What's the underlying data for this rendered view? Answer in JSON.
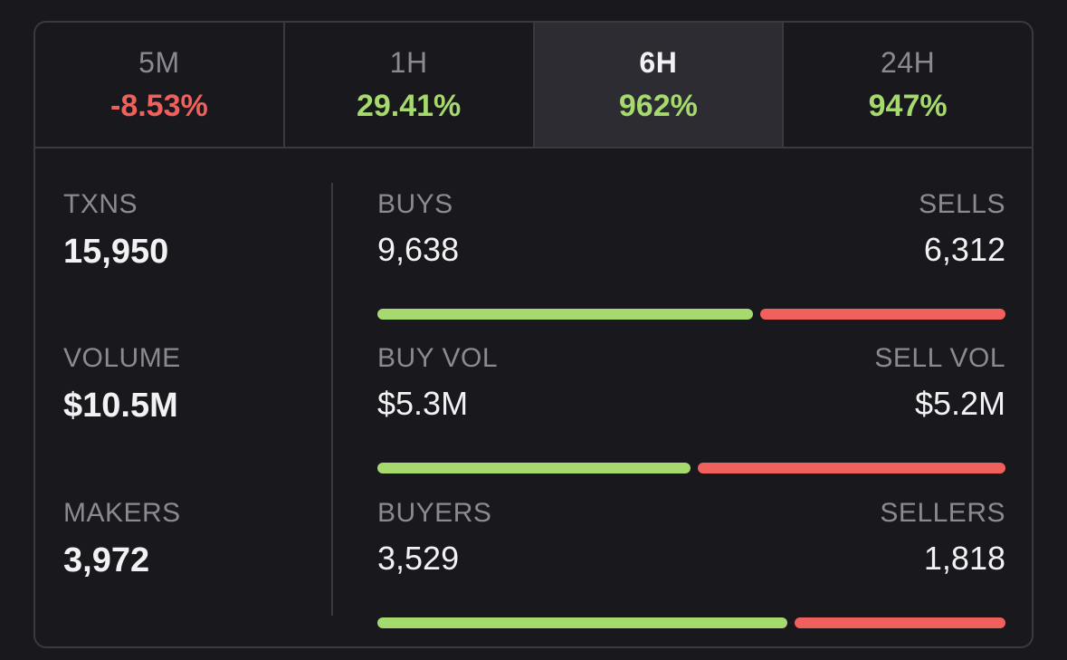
{
  "tabs": [
    {
      "label": "5M",
      "value": "-8.53%",
      "trend": "negative",
      "active": false
    },
    {
      "label": "1H",
      "value": "29.41%",
      "trend": "positive",
      "active": false
    },
    {
      "label": "6H",
      "value": "962%",
      "trend": "positive",
      "active": true
    },
    {
      "label": "24H",
      "value": "947%",
      "trend": "positive",
      "active": false
    }
  ],
  "stats": {
    "txns": {
      "label": "TXNS",
      "value": "15,950"
    },
    "volume": {
      "label": "VOLUME",
      "value": "$10.5M"
    },
    "makers": {
      "label": "MAKERS",
      "value": "3,972"
    }
  },
  "breakdown": {
    "txns": {
      "buy_label": "BUYS",
      "sell_label": "SELLS",
      "buy_value": "9,638",
      "sell_value": "6,312",
      "buy_amount": 9638,
      "sell_amount": 6312
    },
    "volume": {
      "buy_label": "BUY VOL",
      "sell_label": "SELL VOL",
      "buy_value": "$5.3M",
      "sell_value": "$5.2M",
      "buy_amount": 5.3,
      "sell_amount": 5.2
    },
    "makers": {
      "buy_label": "BUYERS",
      "sell_label": "SELLERS",
      "buy_value": "3,529",
      "sell_value": "1,818",
      "buy_amount": 3529,
      "sell_amount": 1818
    }
  },
  "colors": {
    "positive": "#a6d96e",
    "negative": "#f0605c",
    "background": "#19181d",
    "border": "#393940",
    "active_tab": "#2d2c32"
  }
}
